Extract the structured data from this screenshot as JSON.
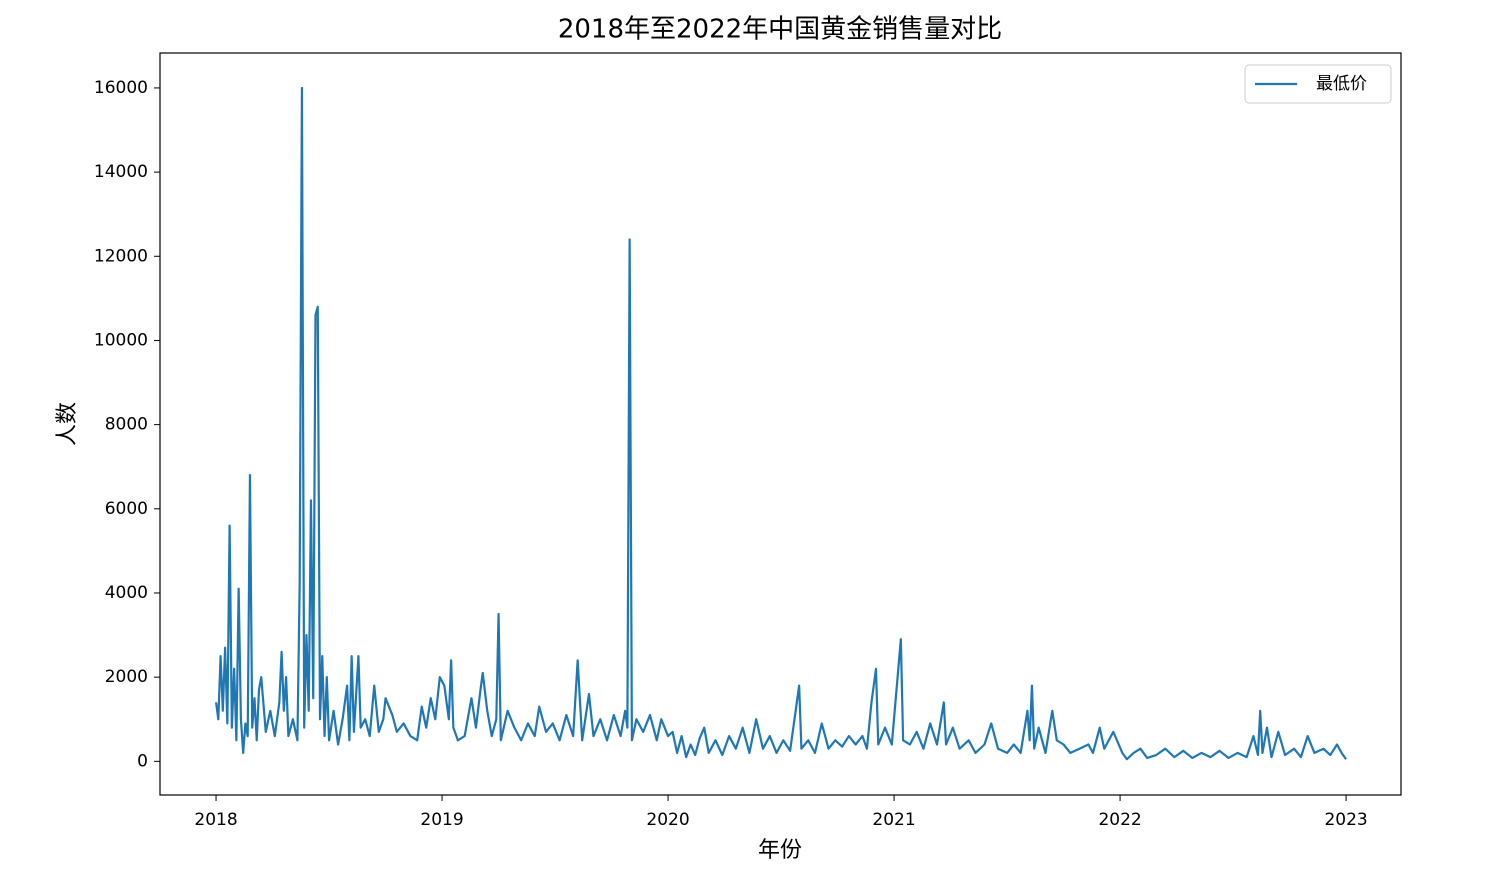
{
  "chart_data": {
    "type": "line",
    "title": "2018年至2022年中国黄金销售量对比",
    "x_label": "年份",
    "y_label": "人数",
    "xlim": [
      2017.752,
      2023.243
    ],
    "xticks": [
      2018,
      2019,
      2020,
      2021,
      2022,
      2023
    ],
    "ylim": [
      -800,
      16830
    ],
    "yticks": [
      0,
      2000,
      4000,
      6000,
      8000,
      10000,
      12000,
      14000,
      16000
    ],
    "grid": false,
    "legend": "upper right",
    "series": [
      {
        "name": "最低价",
        "color": "#1f77b4",
        "x": [
          2018,
          2018.01,
          2018.02,
          2018.03,
          2018.04,
          2018.05,
          2018.06,
          2018.07,
          2018.08,
          2018.09,
          2018.1,
          2018.11,
          2018.12,
          2018.13,
          2018.14,
          2018.15,
          2018.16,
          2018.17,
          2018.18,
          2018.19,
          2018.2,
          2018.22,
          2018.24,
          2018.26,
          2018.28,
          2018.29,
          2018.3,
          2018.31,
          2018.32,
          2018.34,
          2018.36,
          2018.37,
          2018.38,
          2018.39,
          2018.4,
          2018.41,
          2018.42,
          2018.43,
          2018.44,
          2018.45,
          2018.46,
          2018.47,
          2018.48,
          2018.49,
          2018.5,
          2018.52,
          2018.54,
          2018.56,
          2018.58,
          2018.59,
          2018.6,
          2018.61,
          2018.63,
          2018.64,
          2018.66,
          2018.68,
          2018.7,
          2018.72,
          2018.74,
          2018.75,
          2018.78,
          2018.8,
          2018.83,
          2018.86,
          2018.89,
          2018.91,
          2018.93,
          2018.95,
          2018.97,
          2018.99,
          2019.01,
          2019.03,
          2019.04,
          2019.05,
          2019.07,
          2019.1,
          2019.13,
          2019.15,
          2019.17,
          2019.18,
          2019.2,
          2019.22,
          2019.24,
          2019.25,
          2019.26,
          2019.29,
          2019.32,
          2019.35,
          2019.38,
          2019.41,
          2019.43,
          2019.46,
          2019.49,
          2019.52,
          2019.55,
          2019.58,
          2019.6,
          2019.62,
          2019.65,
          2019.67,
          2019.7,
          2019.73,
          2019.76,
          2019.79,
          2019.81,
          2019.82,
          2019.83,
          2019.84,
          2019.86,
          2019.89,
          2019.92,
          2019.95,
          2019.97,
          2020,
          2020.02,
          2020.04,
          2020.06,
          2020.08,
          2020.1,
          2020.12,
          2020.14,
          2020.16,
          2020.18,
          2020.21,
          2020.24,
          2020.27,
          2020.3,
          2020.33,
          2020.36,
          2020.39,
          2020.42,
          2020.45,
          2020.48,
          2020.51,
          2020.54,
          2020.58,
          2020.59,
          2020.62,
          2020.65,
          2020.68,
          2020.71,
          2020.74,
          2020.77,
          2020.8,
          2020.83,
          2020.86,
          2020.88,
          2020.9,
          2020.92,
          2020.93,
          2020.96,
          2020.99,
          2021.03,
          2021.04,
          2021.07,
          2021.1,
          2021.13,
          2021.16,
          2021.19,
          2021.22,
          2021.23,
          2021.26,
          2021.29,
          2021.33,
          2021.36,
          2021.4,
          2021.43,
          2021.46,
          2021.5,
          2021.53,
          2021.56,
          2021.59,
          2021.6,
          2021.61,
          2021.62,
          2021.64,
          2021.67,
          2021.7,
          2021.72,
          2021.75,
          2021.78,
          2021.82,
          2021.86,
          2021.88,
          2021.91,
          2021.93,
          2021.97,
          2022.01,
          2022.03,
          2022.06,
          2022.09,
          2022.12,
          2022.16,
          2022.2,
          2022.24,
          2022.28,
          2022.32,
          2022.36,
          2022.4,
          2022.44,
          2022.48,
          2022.52,
          2022.56,
          2022.59,
          2022.61,
          2022.62,
          2022.63,
          2022.65,
          2022.67,
          2022.7,
          2022.73,
          2022.77,
          2022.8,
          2022.83,
          2022.86,
          2022.9,
          2022.93,
          2022.96,
          2022.98,
          2023
        ],
        "values": [
          1400,
          1000,
          2500,
          1200,
          2700,
          900,
          5600,
          800,
          2200,
          500,
          4100,
          1000,
          200,
          900,
          600,
          6800,
          800,
          1500,
          500,
          1700,
          2000,
          700,
          1200,
          600,
          1400,
          2600,
          1200,
          2000,
          600,
          1000,
          500,
          4200,
          16000,
          800,
          3000,
          1200,
          6200,
          1500,
          10600,
          10800,
          1000,
          2500,
          600,
          2000,
          500,
          1200,
          400,
          1000,
          1800,
          500,
          2500,
          700,
          2500,
          800,
          1000,
          600,
          1800,
          700,
          1000,
          1500,
          1100,
          700,
          900,
          600,
          500,
          1300,
          800,
          1500,
          1000,
          2000,
          1800,
          1000,
          2400,
          800,
          500,
          600,
          1500,
          800,
          1700,
          2100,
          1200,
          600,
          1000,
          3500,
          500,
          1200,
          800,
          500,
          900,
          600,
          1300,
          700,
          900,
          500,
          1100,
          600,
          2400,
          500,
          1600,
          600,
          1000,
          500,
          1100,
          600,
          1200,
          800,
          12400,
          500,
          1000,
          700,
          1100,
          500,
          1000,
          600,
          700,
          200,
          600,
          100,
          400,
          150,
          550,
          800,
          200,
          500,
          150,
          600,
          300,
          800,
          200,
          1000,
          300,
          600,
          200,
          500,
          250,
          1800,
          300,
          500,
          200,
          900,
          300,
          500,
          350,
          600,
          400,
          600,
          300,
          1400,
          2200,
          400,
          800,
          400,
          2900,
          500,
          400,
          700,
          300,
          900,
          400,
          1400,
          400,
          800,
          300,
          500,
          200,
          400,
          900,
          300,
          200,
          400,
          200,
          1200,
          500,
          1800,
          300,
          800,
          200,
          1200,
          500,
          400,
          200,
          300,
          400,
          200,
          800,
          300,
          700,
          200,
          50,
          200,
          300,
          80,
          150,
          300,
          100,
          250,
          80,
          200,
          100,
          250,
          80,
          200,
          100,
          600,
          150,
          1200,
          200,
          800,
          100,
          700,
          150,
          300,
          100,
          600,
          200,
          300,
          150,
          400,
          200,
          50
        ]
      }
    ]
  }
}
